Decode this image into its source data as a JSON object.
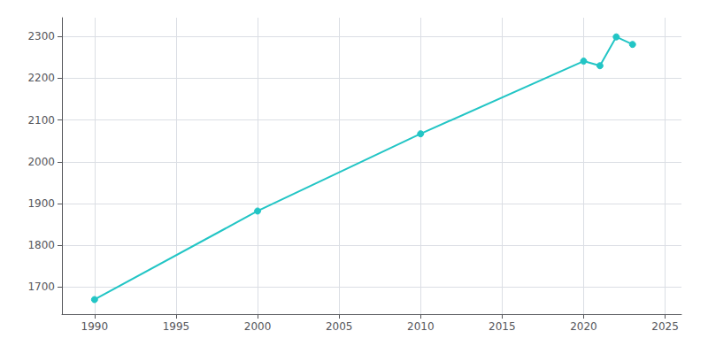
{
  "chart_data": {
    "type": "line",
    "x": [
      1990,
      2000,
      2010,
      2020,
      2021,
      2022,
      2023
    ],
    "values": [
      1670,
      1882,
      2067,
      2241,
      2230,
      2299,
      2281
    ],
    "color": "#22c5c5",
    "marker": "circle",
    "xlim": [
      1988,
      2026
    ],
    "ylim": [
      1635,
      2345
    ],
    "xticks": [
      1990,
      1995,
      2000,
      2005,
      2010,
      2015,
      2020,
      2025
    ],
    "yticks": [
      1700,
      1800,
      1900,
      2000,
      2100,
      2200,
      2300
    ],
    "grid": true
  }
}
